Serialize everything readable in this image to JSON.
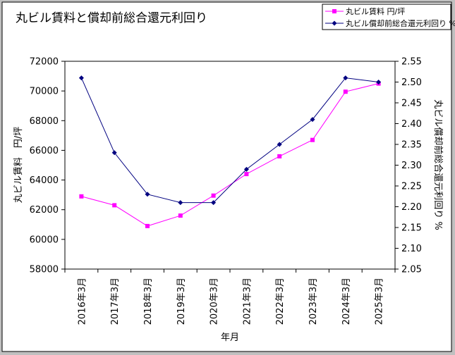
{
  "chart_data": {
    "type": "line",
    "title": "丸ビル賃料と償却前総合還元利回り",
    "xlabel": "年月",
    "categories": [
      "2016年3月",
      "2017年3月",
      "2018年3月",
      "2019年3月",
      "2020年3月",
      "2021年3月",
      "2022年3月",
      "2023年3月",
      "2024年3月",
      "2025年3月"
    ],
    "y_left": {
      "label": "丸ビル賃料　円/坪",
      "min": 58000,
      "max": 72000,
      "step": 2000,
      "ticks": [
        "58000",
        "60000",
        "62000",
        "64000",
        "66000",
        "68000",
        "70000",
        "72000"
      ]
    },
    "y_right": {
      "label": "丸ビル償却前総合還元利回り %",
      "min": 2.05,
      "max": 2.55,
      "step": 0.05,
      "ticks": [
        "2.05",
        "2.10",
        "2.15",
        "2.20",
        "2.25",
        "2.30",
        "2.35",
        "2.40",
        "2.45",
        "2.50",
        "2.55"
      ]
    },
    "series": [
      {
        "name": "丸ビル賃料 円/坪",
        "axis": "left",
        "marker": "square",
        "color": "#ff00ff",
        "values": [
          62900,
          62300,
          60900,
          61600,
          62950,
          64400,
          65600,
          66700,
          69950,
          70500
        ]
      },
      {
        "name": "丸ビル償却前総合還元利回り %",
        "axis": "right",
        "marker": "diamond",
        "color": "#000080",
        "values": [
          2.51,
          2.33,
          2.23,
          2.21,
          2.21,
          2.29,
          2.35,
          2.41,
          2.51,
          2.5
        ]
      }
    ],
    "grid": false,
    "legend_position": "top-right"
  },
  "colors": {
    "plot_background": "#ffffff",
    "outer_background": "#c0c0c0"
  }
}
